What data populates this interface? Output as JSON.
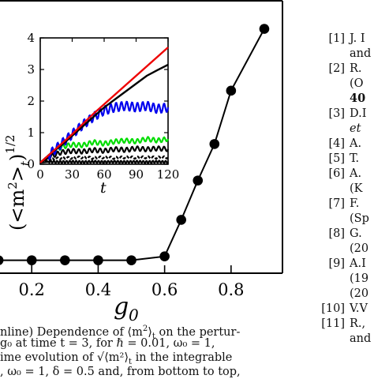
{
  "figure": {
    "main_plot": {
      "xlabel": "g",
      "xlabel_sub": "0",
      "ylabel": "(<m",
      "ylabel_sup": "2",
      "ylabel_rest": ">",
      "ylabel_sub": "t",
      "ylabel_close": ")",
      "ylabel_power": "1/2",
      "x_tick_labels": [
        "0.2",
        "0.4",
        "0.6",
        "0.8"
      ]
    },
    "inset_plot": {
      "xlabel": "t",
      "x_tick_labels": [
        "0",
        "30",
        "60",
        "90",
        "120"
      ],
      "y_tick_labels": [
        "0",
        "1",
        "2",
        "3",
        "4"
      ]
    }
  },
  "chart_data": [
    {
      "type": "line",
      "role": "main",
      "x": [
        0.0,
        0.1,
        0.2,
        0.3,
        0.4,
        0.5,
        0.6,
        0.65,
        0.7,
        0.75,
        0.8,
        0.9
      ],
      "y": [
        0.03,
        0.03,
        0.03,
        0.03,
        0.03,
        0.03,
        0.1,
        0.75,
        1.45,
        2.1,
        3.05,
        4.15
      ],
      "xlim": [
        0.0,
        0.95
      ],
      "ylim": [
        -0.2,
        4.65
      ],
      "x_ticks": [
        0.2,
        0.4,
        0.6,
        0.8
      ],
      "marker": "filled-circle",
      "color": "#000000"
    },
    {
      "type": "line",
      "role": "inset",
      "xlim": [
        0,
        120
      ],
      "ylim": [
        0,
        4
      ],
      "x_ticks": [
        0,
        30,
        60,
        90,
        120
      ],
      "y_ticks": [
        0,
        1,
        2,
        3,
        4
      ],
      "series": [
        {
          "color": "#000000",
          "style": "triangles",
          "x": [
            0,
            10,
            20,
            30,
            40,
            50,
            60,
            70,
            80,
            90,
            100,
            110,
            120
          ],
          "y": [
            0.05,
            0.08,
            0.07,
            0.08,
            0.07,
            0.08,
            0.07,
            0.08,
            0.07,
            0.08,
            0.07,
            0.08,
            0.07
          ]
        },
        {
          "color": "#000000",
          "style": "dashed",
          "x": [
            0,
            10,
            20,
            30,
            40,
            50,
            60,
            70,
            80,
            90,
            100,
            110,
            120
          ],
          "y": [
            0.05,
            0.15,
            0.2,
            0.2,
            0.22,
            0.2,
            0.22,
            0.2,
            0.22,
            0.21,
            0.22,
            0.21,
            0.22
          ]
        },
        {
          "color": "#000000",
          "style": "oscillating",
          "x": [
            0,
            10,
            20,
            30,
            40,
            50,
            60,
            70,
            80,
            90,
            100,
            110,
            120
          ],
          "y": [
            0.05,
            0.25,
            0.38,
            0.42,
            0.4,
            0.45,
            0.42,
            0.48,
            0.45,
            0.5,
            0.47,
            0.5,
            0.48
          ]
        },
        {
          "color": "#00dd00",
          "style": "oscillating",
          "x": [
            0,
            10,
            20,
            30,
            40,
            50,
            60,
            70,
            80,
            90,
            100,
            110,
            120
          ],
          "y": [
            0.05,
            0.35,
            0.55,
            0.62,
            0.6,
            0.7,
            0.65,
            0.72,
            0.75,
            0.72,
            0.8,
            0.75,
            0.8
          ]
        },
        {
          "color": "#0000ee",
          "style": "oscillating",
          "x": [
            0,
            10,
            20,
            30,
            40,
            50,
            60,
            70,
            80,
            90,
            100,
            110,
            120
          ],
          "y": [
            0.05,
            0.35,
            0.65,
            0.95,
            1.25,
            1.5,
            1.7,
            1.8,
            1.85,
            1.8,
            1.85,
            1.75,
            1.8
          ]
        },
        {
          "color": "#000000",
          "style": "solid",
          "x": [
            0,
            10,
            20,
            30,
            40,
            50,
            60,
            70,
            80,
            90,
            100,
            110,
            120
          ],
          "y": [
            0.05,
            0.35,
            0.6,
            0.9,
            1.2,
            1.5,
            1.8,
            2.05,
            2.3,
            2.55,
            2.8,
            2.98,
            3.15
          ]
        },
        {
          "color": "#ee0000",
          "style": "solid",
          "x": [
            0,
            10,
            20,
            30,
            40,
            50,
            60,
            70,
            80,
            90,
            100,
            110,
            120
          ],
          "y": [
            0.05,
            0.35,
            0.65,
            0.95,
            1.28,
            1.6,
            1.9,
            2.2,
            2.5,
            2.8,
            3.1,
            3.4,
            3.7
          ]
        }
      ]
    }
  ],
  "caption": {
    "line1_a": "nline) Dependence of ⟨m",
    "line1_sup": "2",
    "line1_b": "⟩",
    "line1_sub": "t",
    "line1_c": " on the pertur-",
    "line2": "g₀ at time t = 3, for ℏ = 0.01, ω₀ = 1,",
    "line3_a": "ime evolution of ",
    "line3_sqrt": "√⟨m²⟩",
    "line3_sub": "t",
    "line3_b": " in the integrable",
    "line4": ", ω₀ = 1, δ = 0.5 and, from bottom to top,"
  },
  "references": [
    {
      "num": "[1]",
      "text": "J. I",
      "cont": "and"
    },
    {
      "num": "[2]",
      "text": "R.",
      "cont": "(O",
      "cont_bold": "40"
    },
    {
      "num": "[3]",
      "text": "D.I",
      "cont_italic": "et"
    },
    {
      "num": "[4]",
      "text": "A."
    },
    {
      "num": "[5]",
      "text": "T."
    },
    {
      "num": "[6]",
      "text": "A.",
      "cont": "(K"
    },
    {
      "num": "[7]",
      "text": "F.",
      "cont": "(Sp"
    },
    {
      "num": "[8]",
      "text": "G.",
      "cont": "(20"
    },
    {
      "num": "[9]",
      "text": "A.I",
      "cont": "(19",
      "cont2": "(20"
    },
    {
      "num": "[10]",
      "text": "V.V"
    },
    {
      "num": "[11]",
      "text": "R.,",
      "cont": "and"
    }
  ]
}
